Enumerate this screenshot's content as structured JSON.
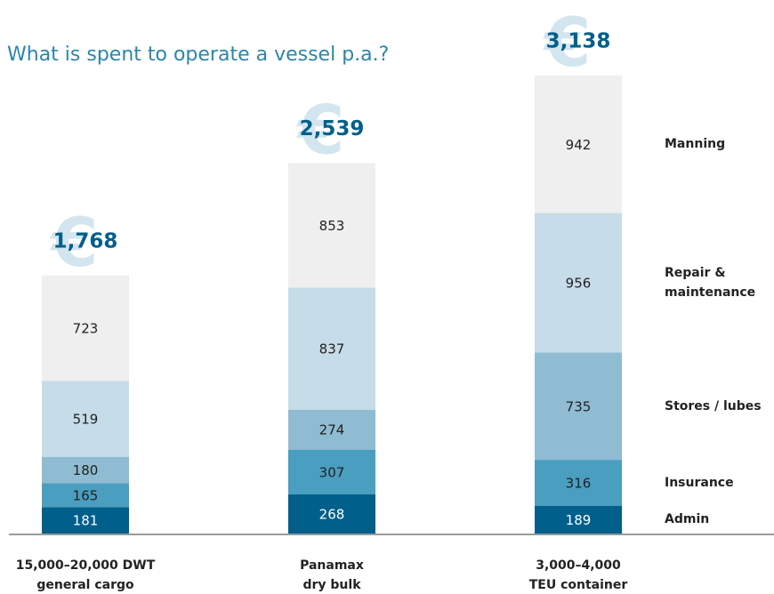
{
  "chart_data": {
    "type": "stacked_bar",
    "title": "What is spent to operate a vessel p.a.?",
    "currency_symbol": "€",
    "categories": [
      [
        "15,000–20,000 DWT",
        "general cargo"
      ],
      [
        "Panamax",
        "dry bulk"
      ],
      [
        "3,000–4,000",
        "TEU container"
      ]
    ],
    "series": [
      {
        "name": "Admin",
        "color": "#005f8b",
        "values": [
          181,
          268,
          189
        ]
      },
      {
        "name": "Insurance",
        "color": "#4a9ebf",
        "values": [
          165,
          307,
          316
        ]
      },
      {
        "name": "Stores / lubes",
        "color": "#8fbcd3",
        "values": [
          180,
          274,
          735
        ]
      },
      {
        "name": "Repair & maintenance",
        "color": "#c6dce8",
        "values": [
          519,
          837,
          956
        ]
      },
      {
        "name": "Manning",
        "color": "#efefef",
        "values": [
          723,
          853,
          942
        ]
      }
    ],
    "totals": [
      1768,
      2539,
      3138
    ],
    "total_labels": [
      "1,768",
      "2,539",
      "3,138"
    ]
  }
}
